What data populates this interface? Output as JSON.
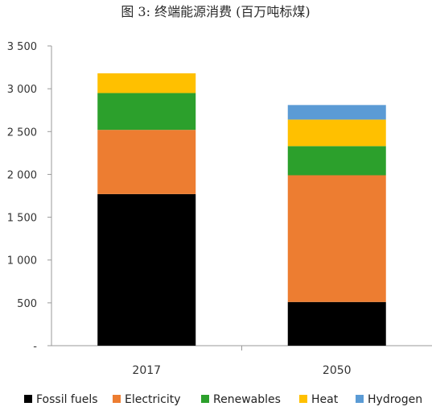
{
  "chart_data": {
    "type": "bar",
    "stacked": true,
    "title": "图 3: 终端能源消费 (百万吨标煤)",
    "categories": [
      "2017",
      "2050"
    ],
    "series": [
      {
        "name": "Fossil fuels",
        "color": "#000000",
        "values": [
          1770,
          510
        ]
      },
      {
        "name": "Electricity",
        "color": "#ED7D31",
        "values": [
          750,
          1480
        ]
      },
      {
        "name": "Renewables",
        "color": "#2CA02C",
        "values": [
          430,
          340
        ]
      },
      {
        "name": "Heat",
        "color": "#FFC000",
        "values": [
          230,
          310
        ]
      },
      {
        "name": "Hydrogen",
        "color": "#5B9BD5",
        "values": [
          0,
          170
        ]
      }
    ],
    "yticks": [
      "-",
      "500",
      "1 000",
      "1 500",
      "2 000",
      "2 500",
      "3 000",
      "3 500"
    ],
    "ylim": [
      0,
      3500
    ],
    "grid": false,
    "legend": "bottom"
  }
}
